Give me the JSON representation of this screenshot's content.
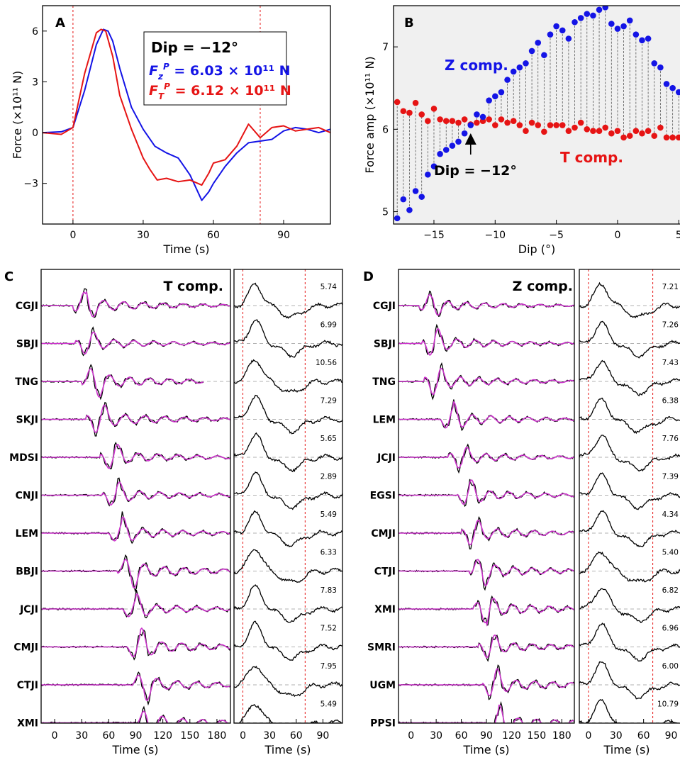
{
  "colors": {
    "blue": "#1414e6",
    "red": "#e61414",
    "magenta": "#cc33cc",
    "black": "#000000",
    "bg_B": "#f0f0f0"
  },
  "chart_data": [
    {
      "id": "A",
      "type": "line",
      "panel_label": "A",
      "xlabel": "Time (s)",
      "ylabel": "Force (×10¹¹ N)",
      "xlim": [
        -13,
        110
      ],
      "ylim": [
        -5.4,
        7.5
      ],
      "xticks": [
        0,
        30,
        60,
        90
      ],
      "yticks": [
        -3,
        0,
        3,
        6
      ],
      "vlines": [
        0,
        80
      ],
      "legend": {
        "line1": "Dip = −12°",
        "line2": "F",
        "line2_sub": "z",
        "line2_sup": "P",
        "line2_rest": " = 6.03 × 10¹¹ N",
        "line3": "F",
        "line3_sub": "T",
        "line3_sup": "P",
        "line3_rest": " = 6.12 × 10¹¹ N"
      },
      "series": [
        {
          "name": "Z",
          "color": "blue",
          "x": [
            -13,
            -5,
            0,
            5,
            10,
            13,
            15,
            17,
            20,
            25,
            30,
            35,
            40,
            45,
            50,
            55,
            58,
            60,
            65,
            70,
            75,
            80,
            85,
            90,
            95,
            100,
            105,
            110
          ],
          "y": [
            0,
            0.05,
            0.3,
            2.5,
            5.2,
            6.1,
            6.0,
            5.4,
            3.8,
            1.5,
            0.2,
            -0.8,
            -1.2,
            -1.5,
            -2.5,
            -4.0,
            -3.5,
            -3.0,
            -2.0,
            -1.2,
            -0.6,
            -0.5,
            -0.4,
            0.1,
            0.3,
            0.2,
            0,
            0.2
          ]
        },
        {
          "name": "T",
          "color": "red",
          "x": [
            -13,
            -5,
            0,
            5,
            10,
            12,
            14,
            17,
            20,
            25,
            30,
            33,
            36,
            40,
            45,
            50,
            55,
            58,
            60,
            65,
            70,
            75,
            80,
            85,
            90,
            95,
            100,
            105,
            110
          ],
          "y": [
            0,
            -0.1,
            0.3,
            3.5,
            5.9,
            6.1,
            6.0,
            4.5,
            2.2,
            0.2,
            -1.5,
            -2.2,
            -2.8,
            -2.7,
            -2.9,
            -2.8,
            -3.1,
            -2.4,
            -1.8,
            -1.6,
            -0.8,
            0.5,
            -0.3,
            0.3,
            0.4,
            0.1,
            0.2,
            0.3,
            0
          ]
        }
      ]
    },
    {
      "id": "B",
      "type": "scatter",
      "panel_label": "B",
      "xlabel": "Dip (°)",
      "ylabel": "Force amp (×10¹¹ N)",
      "xlim": [
        -18.3,
        5.1
      ],
      "ylim": [
        4.85,
        7.5
      ],
      "xticks": [
        -15,
        -10,
        -5,
        0,
        5
      ],
      "yticks": [
        5,
        6,
        7
      ],
      "labels": {
        "z": "Z comp.",
        "t": "T comp.",
        "arrow": "Dip = −12°"
      },
      "arrow_at": -12,
      "z_x": [
        -18,
        -17.5,
        -17,
        -16.5,
        -16,
        -15.5,
        -15,
        -14.5,
        -14,
        -13.5,
        -13,
        -12.5,
        -12,
        -11.5,
        -11,
        -10.5,
        -10,
        -9.5,
        -9,
        -8.5,
        -8,
        -7.5,
        -7,
        -6.5,
        -6,
        -5.5,
        -5,
        -4.5,
        -4,
        -3.5,
        -3,
        -2.5,
        -2,
        -1.5,
        -1,
        -0.5,
        0,
        0.5,
        1,
        1.5,
        2,
        2.5,
        3,
        3.5,
        4,
        4.5,
        5
      ],
      "z_y": [
        4.92,
        5.15,
        5.02,
        5.25,
        5.18,
        5.45,
        5.55,
        5.7,
        5.75,
        5.8,
        5.85,
        5.95,
        6.05,
        6.18,
        6.15,
        6.35,
        6.4,
        6.45,
        6.6,
        6.7,
        6.75,
        6.8,
        6.95,
        7.05,
        6.9,
        7.15,
        7.25,
        7.2,
        7.1,
        7.3,
        7.35,
        7.4,
        7.38,
        7.45,
        7.48,
        7.28,
        7.22,
        7.25,
        7.32,
        7.15,
        7.08,
        7.1,
        6.8,
        6.75,
        6.55,
        6.5,
        6.45
      ],
      "t_y": [
        6.33,
        6.22,
        6.2,
        6.32,
        6.18,
        6.1,
        6.25,
        6.12,
        6.1,
        6.1,
        6.08,
        6.12,
        6.06,
        6.08,
        6.1,
        6.12,
        6.05,
        6.12,
        6.08,
        6.1,
        6.05,
        5.98,
        6.08,
        6.05,
        5.97,
        6.05,
        6.05,
        6.05,
        5.98,
        6.02,
        6.08,
        6,
        5.98,
        5.98,
        6.02,
        5.95,
        5.98,
        5.9,
        5.92,
        5.98,
        5.95,
        5.98,
        5.92,
        6.02,
        5.9,
        5.9,
        5.9
      ]
    },
    {
      "id": "C",
      "type": "line",
      "panel_label": "C",
      "title": "T comp.",
      "xlabel": "Time (s)",
      "xlim": [
        -15,
        195
      ],
      "xticks": [
        0,
        30,
        60,
        90,
        120,
        150,
        180
      ],
      "stations": [
        "CGJI",
        "SBJI",
        "TNG",
        "SKJI",
        "MDSI",
        "CNJI",
        "LEM",
        "BBJI",
        "JCJI",
        "CMJI",
        "CTJI",
        "XMI"
      ],
      "arrivals": [
        25,
        28,
        35,
        40,
        55,
        58,
        65,
        75,
        80,
        85,
        90,
        95
      ],
      "record_end": [
        195,
        195,
        165,
        195,
        195,
        195,
        195,
        195,
        195,
        195,
        195,
        195
      ],
      "right": {
        "xlabel": "Time (s)",
        "xlim": [
          -10,
          112
        ],
        "xticks": [
          0,
          30,
          60,
          90
        ],
        "vlines": [
          0,
          70
        ],
        "amps": [
          "5.74",
          "6.99",
          "10.56",
          "7.29",
          "5.65",
          "2.89",
          "5.49",
          "6.33",
          "7.83",
          "7.52",
          "7.95",
          "5.49"
        ]
      }
    },
    {
      "id": "D",
      "type": "line",
      "panel_label": "D",
      "title": "Z comp.",
      "xlabel": "Time (s)",
      "xlim": [
        -15,
        195
      ],
      "xticks": [
        0,
        30,
        60,
        90,
        120,
        150,
        180
      ],
      "stations": [
        "CGJI",
        "SBJI",
        "TNG",
        "LEM",
        "JCJI",
        "EGSI",
        "CMJI",
        "CTJI",
        "XMI",
        "SMRI",
        "UGM",
        "PPSI"
      ],
      "arrivals": [
        15,
        18,
        20,
        40,
        50,
        60,
        65,
        75,
        80,
        85,
        90,
        95
      ],
      "record_end": [
        195,
        195,
        195,
        195,
        195,
        195,
        195,
        195,
        195,
        195,
        195,
        195
      ],
      "right": {
        "xlabel": "Time (s)",
        "xlim": [
          -10,
          112
        ],
        "xticks": [
          0,
          30,
          60,
          90
        ],
        "vlines": [
          0,
          70
        ],
        "amps": [
          "7.21",
          "7.26",
          "7.43",
          "6.38",
          "7.76",
          "7.39",
          "4.34",
          "5.40",
          "6.82",
          "6.96",
          "6.00",
          "10.79"
        ]
      }
    }
  ]
}
